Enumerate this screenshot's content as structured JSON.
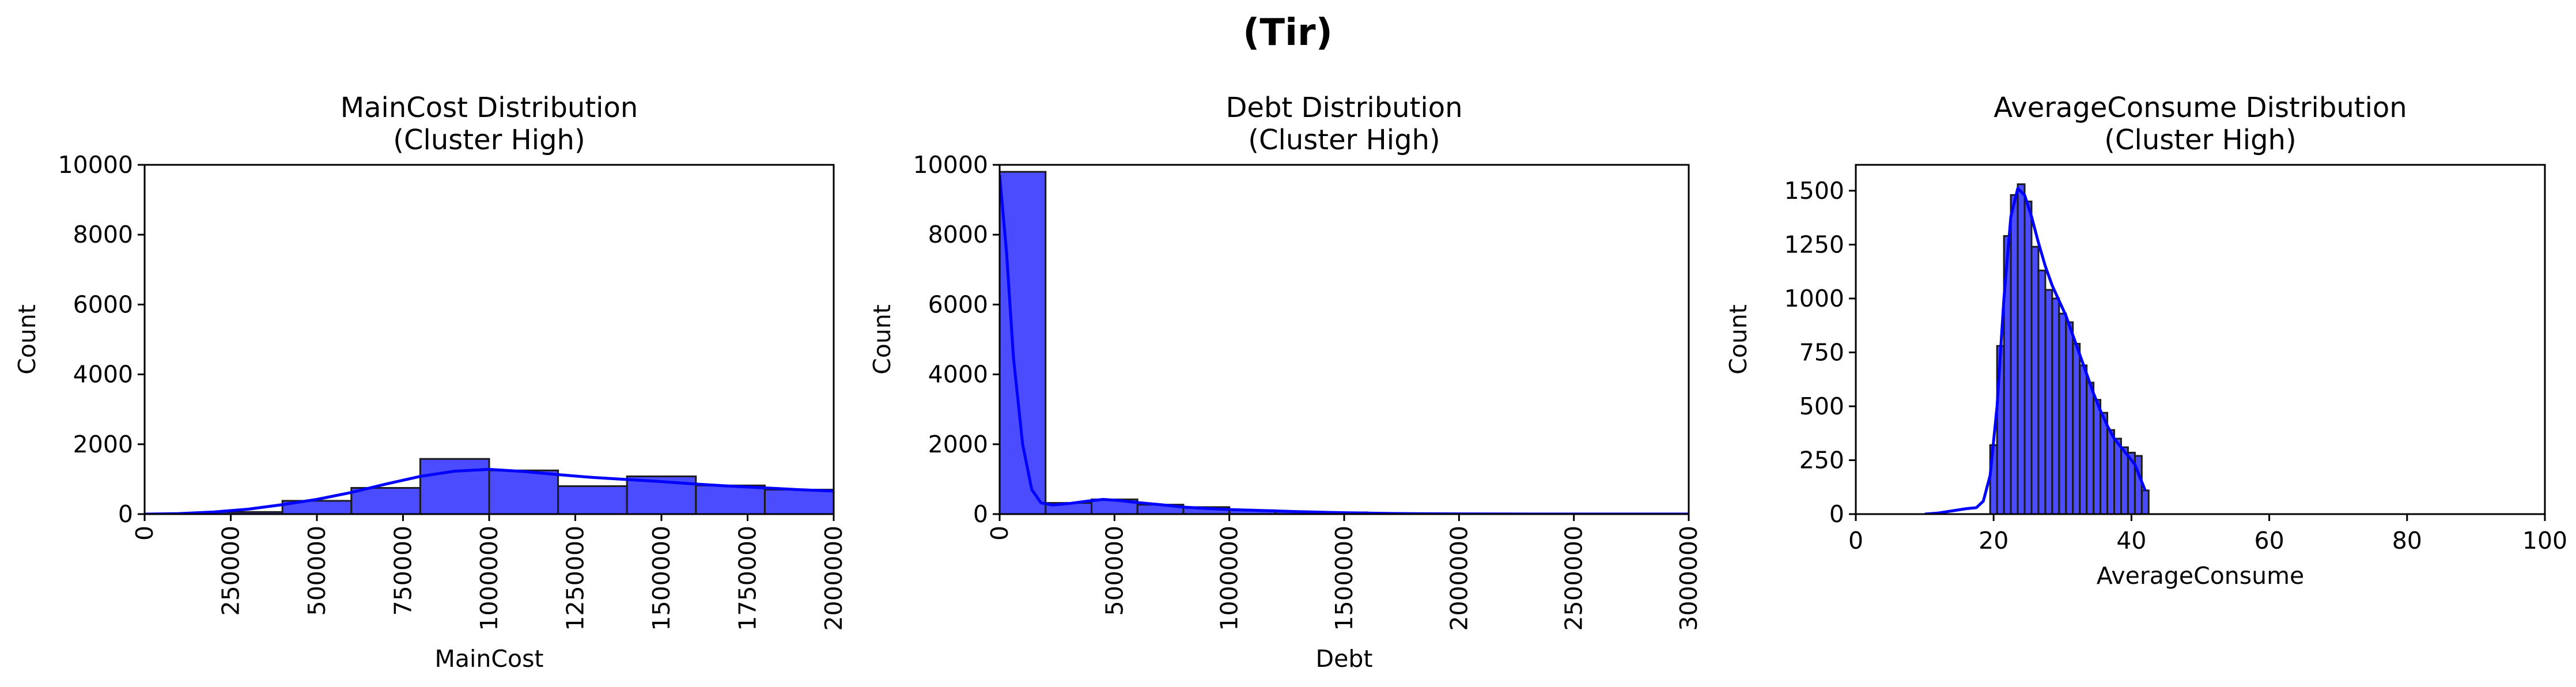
{
  "figure_title": "(Tir)",
  "chart_data": [
    {
      "type": "histogram",
      "title_lines": [
        "MainCost Distribution",
        "(Cluster High)"
      ],
      "xlabel": "MainCost",
      "ylabel": "Count",
      "xlim": [
        0,
        2000000
      ],
      "ylim": [
        0,
        10000
      ],
      "xticks": [
        0,
        250000,
        500000,
        750000,
        1000000,
        1250000,
        1500000,
        1750000,
        2000000
      ],
      "yticks": [
        0,
        2000,
        4000,
        6000,
        8000,
        10000
      ],
      "rotate_xticks": true,
      "bins": [
        {
          "x0": 200000,
          "x1": 400000,
          "count": 60
        },
        {
          "x0": 400000,
          "x1": 600000,
          "count": 380
        },
        {
          "x0": 600000,
          "x1": 800000,
          "count": 750
        },
        {
          "x0": 800000,
          "x1": 1000000,
          "count": 1580
        },
        {
          "x0": 1000000,
          "x1": 1200000,
          "count": 1250
        },
        {
          "x0": 1200000,
          "x1": 1400000,
          "count": 800
        },
        {
          "x0": 1400000,
          "x1": 1600000,
          "count": 1080
        },
        {
          "x0": 1600000,
          "x1": 1800000,
          "count": 820
        },
        {
          "x0": 1800000,
          "x1": 2000000,
          "count": 700
        }
      ],
      "kde": [
        [
          0,
          0
        ],
        [
          100000,
          15
        ],
        [
          200000,
          60
        ],
        [
          300000,
          140
        ],
        [
          400000,
          270
        ],
        [
          500000,
          420
        ],
        [
          600000,
          620
        ],
        [
          700000,
          860
        ],
        [
          800000,
          1080
        ],
        [
          900000,
          1230
        ],
        [
          1000000,
          1280
        ],
        [
          1100000,
          1220
        ],
        [
          1200000,
          1130
        ],
        [
          1300000,
          1050
        ],
        [
          1400000,
          990
        ],
        [
          1500000,
          930
        ],
        [
          1600000,
          860
        ],
        [
          1700000,
          800
        ],
        [
          1800000,
          750
        ],
        [
          1900000,
          700
        ],
        [
          2000000,
          660
        ]
      ],
      "color": "#0000ff"
    },
    {
      "type": "histogram",
      "title_lines": [
        "Debt Distribution",
        "(Cluster High)"
      ],
      "xlabel": "Debt",
      "ylabel": "Count",
      "xlim": [
        0,
        3000000
      ],
      "ylim": [
        0,
        10000
      ],
      "xticks": [
        0,
        500000,
        1000000,
        1500000,
        2000000,
        2500000,
        3000000
      ],
      "yticks": [
        0,
        2000,
        4000,
        6000,
        8000,
        10000
      ],
      "rotate_xticks": true,
      "bins": [
        {
          "x0": 0,
          "x1": 200000,
          "count": 9800
        },
        {
          "x0": 200000,
          "x1": 400000,
          "count": 320
        },
        {
          "x0": 400000,
          "x1": 600000,
          "count": 420
        },
        {
          "x0": 600000,
          "x1": 800000,
          "count": 270
        },
        {
          "x0": 800000,
          "x1": 1000000,
          "count": 200
        },
        {
          "x0": 1000000,
          "x1": 1200000,
          "count": 110
        },
        {
          "x0": 1200000,
          "x1": 1400000,
          "count": 70
        },
        {
          "x0": 1400000,
          "x1": 1600000,
          "count": 50
        },
        {
          "x0": 1600000,
          "x1": 1800000,
          "count": 25
        },
        {
          "x0": 1800000,
          "x1": 2000000,
          "count": 12
        },
        {
          "x0": 2000000,
          "x1": 2200000,
          "count": 6
        },
        {
          "x0": 2200000,
          "x1": 2400000,
          "count": 4
        },
        {
          "x0": 2400000,
          "x1": 2600000,
          "count": 3
        },
        {
          "x0": 2600000,
          "x1": 2800000,
          "count": 2
        },
        {
          "x0": 2800000,
          "x1": 3000000,
          "count": 2
        }
      ],
      "kde": [
        [
          0,
          9700
        ],
        [
          30000,
          7500
        ],
        [
          60000,
          4500
        ],
        [
          100000,
          2000
        ],
        [
          140000,
          700
        ],
        [
          180000,
          320
        ],
        [
          230000,
          260
        ],
        [
          300000,
          300
        ],
        [
          380000,
          370
        ],
        [
          450000,
          420
        ],
        [
          520000,
          390
        ],
        [
          600000,
          330
        ],
        [
          700000,
          270
        ],
        [
          800000,
          200
        ],
        [
          900000,
          160
        ],
        [
          1000000,
          130
        ],
        [
          1100000,
          110
        ],
        [
          1200000,
          90
        ],
        [
          1300000,
          70
        ],
        [
          1400000,
          55
        ],
        [
          1500000,
          40
        ],
        [
          1600000,
          28
        ],
        [
          1700000,
          18
        ],
        [
          1800000,
          12
        ],
        [
          2000000,
          6
        ],
        [
          2200000,
          4
        ],
        [
          2600000,
          2
        ],
        [
          3000000,
          1
        ]
      ],
      "color": "#0000ff"
    },
    {
      "type": "histogram",
      "title_lines": [
        "AverageConsume Distribution",
        "(Cluster High)"
      ],
      "xlabel": "AverageConsume",
      "ylabel": "Count",
      "xlim": [
        0,
        100
      ],
      "ylim": [
        0,
        1620
      ],
      "xticks": [
        0,
        20,
        40,
        60,
        80,
        100
      ],
      "yticks": [
        0,
        250,
        500,
        750,
        1000,
        1250,
        1500
      ],
      "rotate_xticks": false,
      "bins": [
        {
          "x0": 19.5,
          "x1": 20.5,
          "count": 320
        },
        {
          "x0": 20.5,
          "x1": 21.5,
          "count": 780
        },
        {
          "x0": 21.5,
          "x1": 22.5,
          "count": 1290
        },
        {
          "x0": 22.5,
          "x1": 23.5,
          "count": 1480
        },
        {
          "x0": 23.5,
          "x1": 24.5,
          "count": 1530
        },
        {
          "x0": 24.5,
          "x1": 25.5,
          "count": 1450
        },
        {
          "x0": 25.5,
          "x1": 26.5,
          "count": 1240
        },
        {
          "x0": 26.5,
          "x1": 27.5,
          "count": 1130
        },
        {
          "x0": 27.5,
          "x1": 28.5,
          "count": 1040
        },
        {
          "x0": 28.5,
          "x1": 29.5,
          "count": 1000
        },
        {
          "x0": 29.5,
          "x1": 30.5,
          "count": 930
        },
        {
          "x0": 30.5,
          "x1": 31.5,
          "count": 890
        },
        {
          "x0": 31.5,
          "x1": 32.5,
          "count": 790
        },
        {
          "x0": 32.5,
          "x1": 33.5,
          "count": 690
        },
        {
          "x0": 33.5,
          "x1": 34.5,
          "count": 610
        },
        {
          "x0": 34.5,
          "x1": 35.5,
          "count": 530
        },
        {
          "x0": 35.5,
          "x1": 36.5,
          "count": 470
        },
        {
          "x0": 36.5,
          "x1": 37.5,
          "count": 390
        },
        {
          "x0": 37.5,
          "x1": 38.5,
          "count": 350
        },
        {
          "x0": 38.5,
          "x1": 39.5,
          "count": 310
        },
        {
          "x0": 39.5,
          "x1": 40.5,
          "count": 285
        },
        {
          "x0": 40.5,
          "x1": 41.5,
          "count": 270
        },
        {
          "x0": 41.5,
          "x1": 42.5,
          "count": 110
        }
      ],
      "kde": [
        [
          10,
          0
        ],
        [
          12,
          5
        ],
        [
          14,
          15
        ],
        [
          16,
          25
        ],
        [
          17.5,
          30
        ],
        [
          18.5,
          60
        ],
        [
          19.5,
          180
        ],
        [
          20.5,
          500
        ],
        [
          21.5,
          1000
        ],
        [
          22.5,
          1380
        ],
        [
          23.5,
          1510
        ],
        [
          24.5,
          1480
        ],
        [
          25.5,
          1380
        ],
        [
          26.5,
          1260
        ],
        [
          27.5,
          1150
        ],
        [
          28.5,
          1060
        ],
        [
          29.5,
          990
        ],
        [
          30.5,
          920
        ],
        [
          31.5,
          830
        ],
        [
          32.5,
          740
        ],
        [
          33.5,
          650
        ],
        [
          34.5,
          560
        ],
        [
          35.5,
          480
        ],
        [
          36.5,
          410
        ],
        [
          37.5,
          350
        ],
        [
          38.5,
          310
        ],
        [
          39.5,
          270
        ],
        [
          40.5,
          230
        ],
        [
          41.5,
          150
        ],
        [
          42,
          110
        ]
      ],
      "color": "#0000ff"
    }
  ]
}
